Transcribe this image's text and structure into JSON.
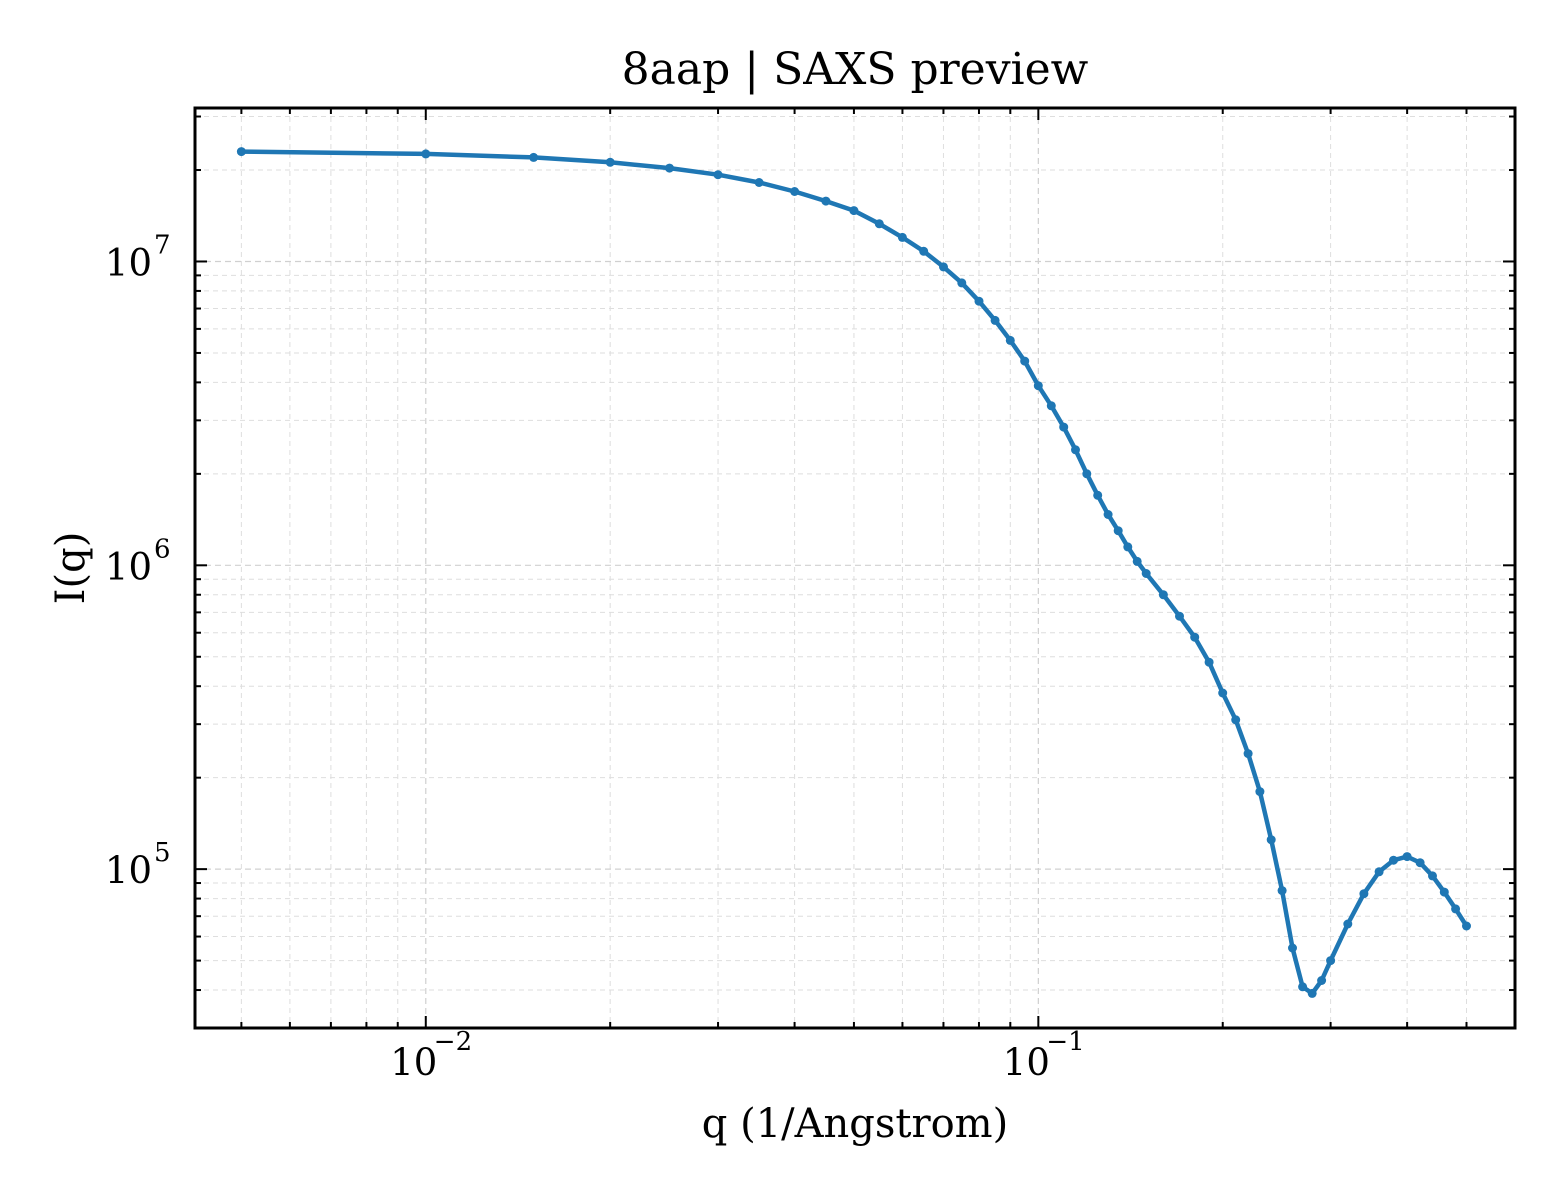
{
  "chart_data": {
    "type": "line",
    "title": "8aap | SAXS preview",
    "xlabel": "q (1/Angstrom)",
    "ylabel": "I(q)",
    "xscale": "log",
    "yscale": "log",
    "xlim": [
      0.0042,
      0.6
    ],
    "ylim": [
      30000,
      32000000
    ],
    "grid": true,
    "legend": "none",
    "xticks": [
      {
        "value": 0.01,
        "base": "10",
        "exp": "−2"
      },
      {
        "value": 0.1,
        "base": "10",
        "exp": "−1"
      }
    ],
    "yticks": [
      {
        "value": 100000,
        "base": "10",
        "exp": "5"
      },
      {
        "value": 1000000,
        "base": "10",
        "exp": "6"
      },
      {
        "value": 10000000,
        "base": "10",
        "exp": "7"
      }
    ],
    "colors": {
      "series": "#1f77b4"
    },
    "series": [
      {
        "x": [
          0.005,
          0.01,
          0.015,
          0.02,
          0.025,
          0.03,
          0.035,
          0.04,
          0.045,
          0.05,
          0.055,
          0.06,
          0.065,
          0.07,
          0.075,
          0.08,
          0.085,
          0.09,
          0.095,
          0.1,
          0.105,
          0.11,
          0.115,
          0.12,
          0.125,
          0.13,
          0.135,
          0.14,
          0.145,
          0.15,
          0.16,
          0.17,
          0.18,
          0.19,
          0.2,
          0.21,
          0.22,
          0.23,
          0.24,
          0.25,
          0.26,
          0.27,
          0.28,
          0.29,
          0.3,
          0.32,
          0.34,
          0.36,
          0.38,
          0.4,
          0.42,
          0.44,
          0.46,
          0.48,
          0.5
        ],
        "y": [
          23000000,
          22600000,
          22000000,
          21200000,
          20300000,
          19300000,
          18200000,
          17000000,
          15800000,
          14700000,
          13300000,
          12000000,
          10800000,
          9600000,
          8500000,
          7400000,
          6400000,
          5500000,
          4700000,
          3900000,
          3350000,
          2850000,
          2400000,
          2000000,
          1700000,
          1470000,
          1300000,
          1150000,
          1030000,
          940000,
          800000,
          680000,
          580000,
          480000,
          380000,
          310000,
          240000,
          180000,
          125000,
          85000,
          55000,
          41000,
          39000,
          43000,
          50000,
          66000,
          83000,
          98000,
          107000,
          110000,
          105000,
          95000,
          84000,
          74000,
          65000
        ]
      }
    ]
  }
}
